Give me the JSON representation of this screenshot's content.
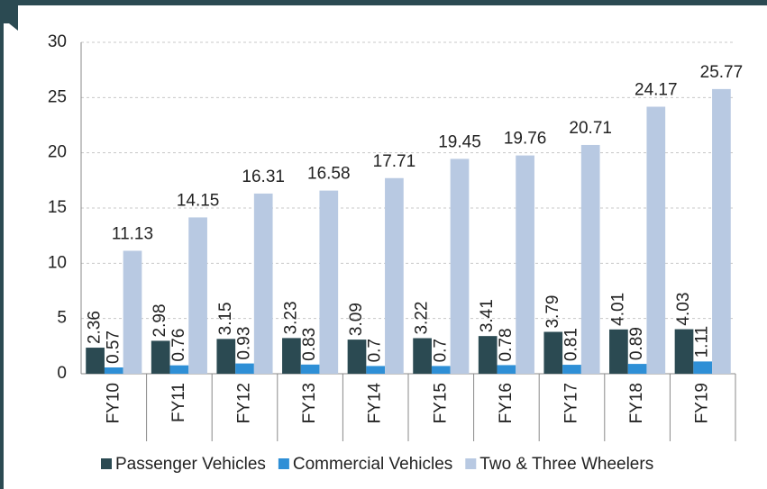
{
  "chart_data": {
    "type": "bar",
    "categories": [
      "FY10",
      "FY11",
      "FY12",
      "FY13",
      "FY14",
      "FY15",
      "FY16",
      "FY17",
      "FY18",
      "FY19"
    ],
    "series": [
      {
        "name": "Passenger Vehicles",
        "color": "#2b4a52",
        "values": [
          2.36,
          2.98,
          3.15,
          3.23,
          3.09,
          3.22,
          3.41,
          3.79,
          4.01,
          4.03
        ]
      },
      {
        "name": "Commercial Vehicles",
        "color": "#2e8fd6",
        "values": [
          0.57,
          0.76,
          0.93,
          0.83,
          0.7,
          0.7,
          0.78,
          0.81,
          0.89,
          1.11
        ]
      },
      {
        "name": "Two & Three Wheelers",
        "color": "#b8c9e2",
        "values": [
          11.13,
          14.15,
          16.31,
          16.58,
          17.71,
          19.45,
          19.76,
          20.71,
          24.17,
          25.77
        ]
      }
    ],
    "ylim": [
      0,
      30
    ],
    "yticks": [
      0,
      5,
      10,
      15,
      20,
      25,
      30
    ],
    "grid": true,
    "legend": "bottom"
  }
}
